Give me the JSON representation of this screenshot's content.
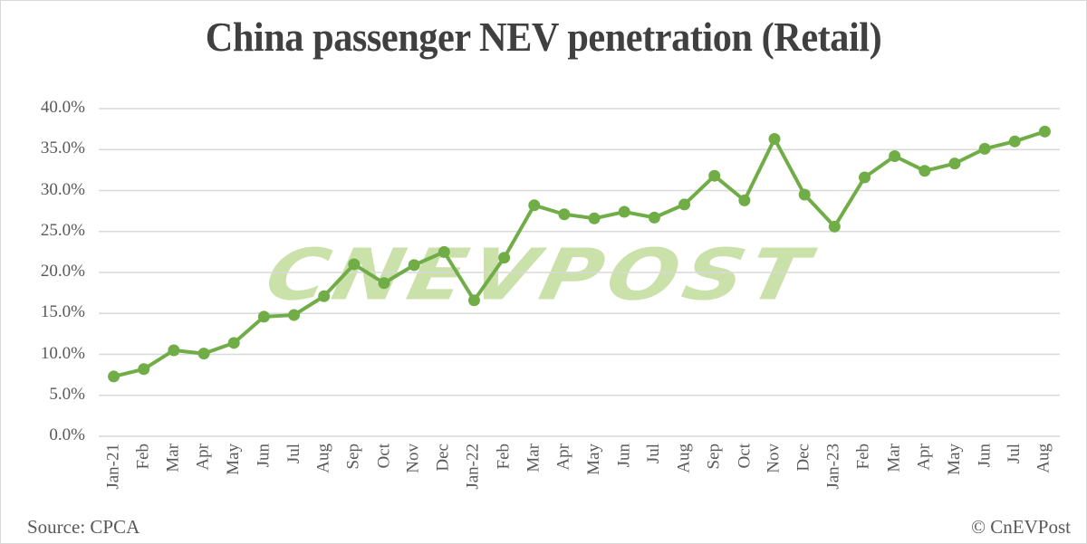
{
  "chart_data": {
    "type": "line",
    "title": "China passenger NEV penetration (Retail)",
    "xlabel": "",
    "ylabel": "",
    "ylim": [
      0,
      40
    ],
    "yticks": [
      "0.0%",
      "5.0%",
      "10.0%",
      "15.0%",
      "20.0%",
      "25.0%",
      "30.0%",
      "35.0%",
      "40.0%"
    ],
    "grid": true,
    "legend": "none",
    "categories": [
      "Jan-21",
      "Feb",
      "Mar",
      "Apr",
      "May",
      "Jun",
      "Jul",
      "Aug",
      "Sep",
      "Oct",
      "Nov",
      "Dec",
      "Jan-22",
      "Feb",
      "Mar",
      "Apr",
      "May",
      "Jun",
      "Jul",
      "Aug",
      "Sep",
      "Oct",
      "Nov",
      "Dec",
      "Jan-23",
      "Feb",
      "Mar",
      "Apr",
      "May",
      "Jun",
      "Jul",
      "Aug"
    ],
    "series": [
      {
        "name": "NEV penetration (Retail)",
        "color": "#70ad47",
        "values": [
          7.3,
          8.2,
          10.5,
          10.1,
          11.4,
          14.6,
          14.8,
          17.1,
          21.0,
          18.7,
          20.9,
          22.5,
          16.6,
          21.8,
          28.2,
          27.1,
          26.6,
          27.4,
          26.7,
          28.3,
          31.8,
          28.8,
          36.3,
          29.5,
          25.6,
          31.6,
          34.2,
          32.4,
          33.3,
          35.1,
          36.0,
          37.2
        ]
      }
    ]
  },
  "watermark": "CNEVPOST",
  "footer": {
    "source": "Source: CPCA",
    "credit": "© CnEVPost"
  }
}
